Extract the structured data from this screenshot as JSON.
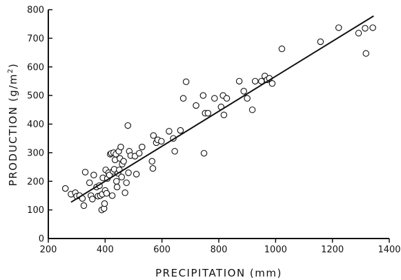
{
  "chart_data": {
    "type": "scatter",
    "title": "",
    "xlabel": "PRECIPITATION (mm)",
    "ylabel": "PRODUCTION (g/m²)",
    "ylabel_parts": {
      "main": "PRODUCTION (g/m",
      "sup": "2",
      "end": ")"
    },
    "xlim": [
      200,
      1400
    ],
    "ylim": [
      0,
      800
    ],
    "x_ticks": [
      200,
      400,
      600,
      800,
      1000,
      1200,
      1400
    ],
    "y_ticks": [
      0,
      100,
      200,
      300,
      400,
      500,
      600,
      700,
      800
    ],
    "grid": false,
    "legend": "none",
    "colors": {
      "ink": "#111111",
      "marker_fill": "#ffffff"
    },
    "regression_line": {
      "x": [
        280,
        1345
      ],
      "y": [
        127,
        778
      ]
    },
    "points": [
      [
        260,
        175
      ],
      [
        280,
        155
      ],
      [
        295,
        160
      ],
      [
        300,
        148
      ],
      [
        310,
        150
      ],
      [
        320,
        140
      ],
      [
        325,
        115
      ],
      [
        330,
        232
      ],
      [
        345,
        195
      ],
      [
        350,
        150
      ],
      [
        355,
        138
      ],
      [
        360,
        222
      ],
      [
        370,
        180
      ],
      [
        375,
        148
      ],
      [
        380,
        185
      ],
      [
        383,
        150
      ],
      [
        388,
        100
      ],
      [
        390,
        155
      ],
      [
        392,
        212
      ],
      [
        396,
        105
      ],
      [
        398,
        122
      ],
      [
        400,
        168
      ],
      [
        402,
        240
      ],
      [
        405,
        158
      ],
      [
        408,
        210
      ],
      [
        412,
        230
      ],
      [
        415,
        222
      ],
      [
        418,
        295
      ],
      [
        422,
        298
      ],
      [
        425,
        150
      ],
      [
        428,
        235
      ],
      [
        430,
        300
      ],
      [
        432,
        242
      ],
      [
        435,
        275
      ],
      [
        438,
        295
      ],
      [
        440,
        200
      ],
      [
        442,
        180
      ],
      [
        445,
        228
      ],
      [
        448,
        305
      ],
      [
        450,
        240
      ],
      [
        452,
        280
      ],
      [
        455,
        320
      ],
      [
        458,
        215
      ],
      [
        460,
        260
      ],
      [
        465,
        270
      ],
      [
        470,
        160
      ],
      [
        475,
        195
      ],
      [
        480,
        395
      ],
      [
        482,
        230
      ],
      [
        485,
        305
      ],
      [
        490,
        290
      ],
      [
        505,
        288
      ],
      [
        510,
        225
      ],
      [
        520,
        298
      ],
      [
        530,
        320
      ],
      [
        565,
        270
      ],
      [
        568,
        245
      ],
      [
        570,
        360
      ],
      [
        580,
        335
      ],
      [
        585,
        345
      ],
      [
        598,
        340
      ],
      [
        625,
        375
      ],
      [
        640,
        350
      ],
      [
        645,
        305
      ],
      [
        665,
        378
      ],
      [
        675,
        490
      ],
      [
        685,
        548
      ],
      [
        720,
        465
      ],
      [
        745,
        500
      ],
      [
        748,
        298
      ],
      [
        752,
        438
      ],
      [
        762,
        438
      ],
      [
        785,
        490
      ],
      [
        808,
        460
      ],
      [
        815,
        500
      ],
      [
        818,
        432
      ],
      [
        828,
        490
      ],
      [
        872,
        550
      ],
      [
        888,
        515
      ],
      [
        900,
        490
      ],
      [
        918,
        450
      ],
      [
        928,
        550
      ],
      [
        950,
        550
      ],
      [
        962,
        568
      ],
      [
        970,
        555
      ],
      [
        978,
        560
      ],
      [
        988,
        542
      ],
      [
        1022,
        663
      ],
      [
        1158,
        688
      ],
      [
        1222,
        737
      ],
      [
        1292,
        718
      ],
      [
        1315,
        735
      ],
      [
        1318,
        647
      ],
      [
        1342,
        737
      ]
    ]
  }
}
